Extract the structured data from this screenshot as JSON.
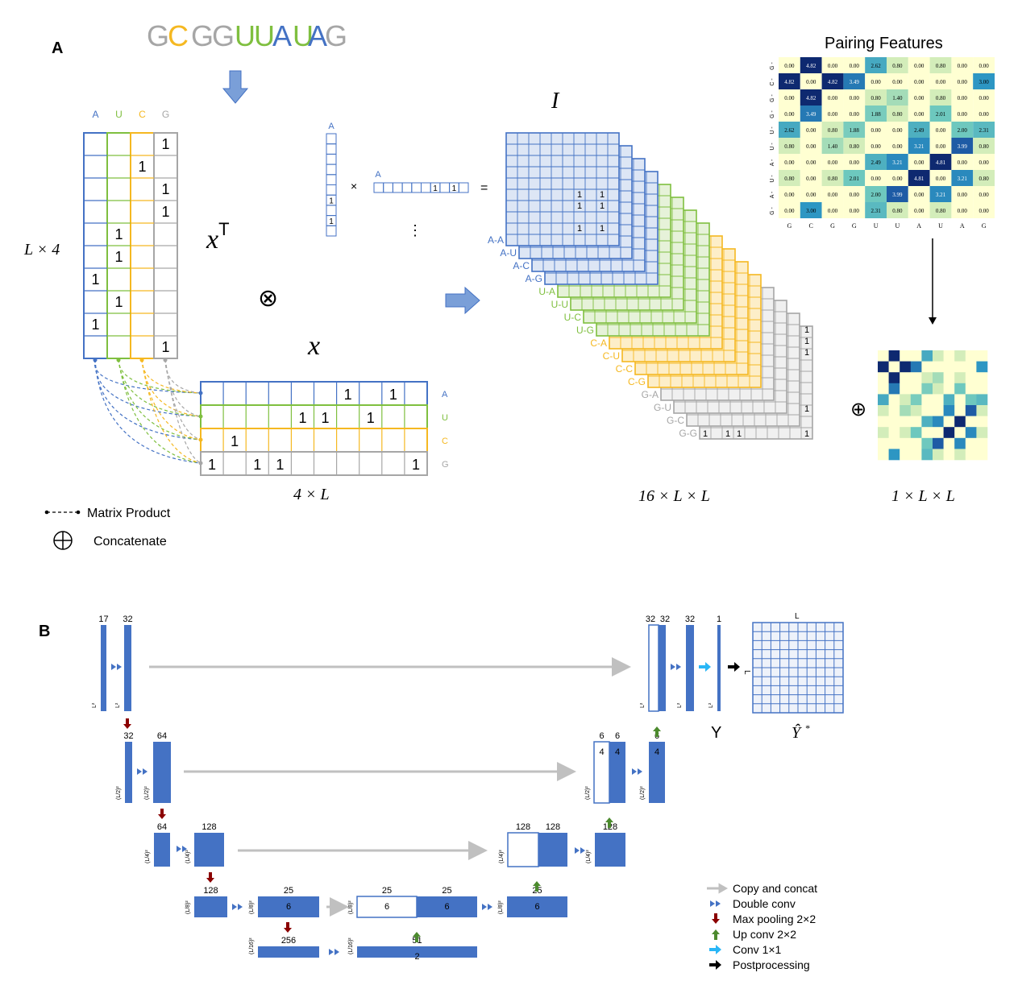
{
  "colors": {
    "A": "#4472c4",
    "U": "#7fbf3f",
    "C": "#f5b821",
    "G": "#a6a6a6",
    "block": "#4472c4",
    "pool": "#8b0000",
    "up": "#4c8a2e",
    "conv1": "#29b6f6",
    "copy": "#c0c0c0"
  },
  "panelA": {
    "label": "A",
    "sequence": [
      "G",
      "C",
      "G",
      "G",
      "U",
      "U",
      "A",
      "U",
      "A",
      "G"
    ],
    "bases": [
      "A",
      "U",
      "C",
      "G"
    ],
    "onehot_cols": [
      [
        6,
        8
      ],
      [
        4,
        5,
        7
      ],
      [
        1
      ],
      [
        0,
        2,
        3,
        9
      ]
    ],
    "xT": "x",
    "xT_sup": "T",
    "x": "x",
    "otimes": "⊗",
    "times": "×",
    "equals": "=",
    "vdots": "⋮",
    "mini_col_ones": [
      4,
      5
    ],
    "mini_row_ones": [
      6,
      8
    ],
    "dim_L4": "L × 4",
    "dim_4L": "4 × L",
    "dim_16LL": "16 × L × L",
    "dim_1LL": "1 × L × L",
    "I_label": "I",
    "pair_labels": [
      "A-A",
      "A-U",
      "A-C",
      "A-G",
      "U-A",
      "U-U",
      "U-C",
      "U-G",
      "C-A",
      "C-U",
      "C-C",
      "C-G",
      "G-A",
      "G-U",
      "G-C",
      "G-G"
    ],
    "one": "1",
    "legend_matrix_product": "Matrix Product",
    "legend_concatenate": "Concatenate",
    "oplus": "⊕",
    "pairing_title": "Pairing Features",
    "pairing_matrix": [
      [
        "0.00",
        "4.82",
        "0.00",
        "0.00",
        "2.62",
        "0.80",
        "0.00",
        "0.80",
        "0.00",
        "0.00"
      ],
      [
        "4.82",
        "0.00",
        "4.82",
        "3.49",
        "0.00",
        "0.00",
        "0.00",
        "0.00",
        "0.00",
        "3.00"
      ],
      [
        "0.00",
        "4.82",
        "0.00",
        "0.00",
        "0.80",
        "1.40",
        "0.00",
        "0.80",
        "0.00",
        "0.00"
      ],
      [
        "0.00",
        "3.49",
        "0.00",
        "0.00",
        "1.88",
        "0.80",
        "0.00",
        "2.01",
        "0.00",
        "0.00"
      ],
      [
        "2.62",
        "0.00",
        "0.80",
        "1.88",
        "0.00",
        "0.00",
        "2.49",
        "0.00",
        "2.00",
        "2.31"
      ],
      [
        "0.80",
        "0.00",
        "1.40",
        "0.80",
        "0.00",
        "0.00",
        "3.21",
        "0.00",
        "3.99",
        "0.80"
      ],
      [
        "0.00",
        "0.00",
        "0.00",
        "0.00",
        "2.49",
        "3.21",
        "0.00",
        "4.81",
        "0.00",
        "0.00"
      ],
      [
        "0.80",
        "0.00",
        "0.80",
        "2.01",
        "0.00",
        "0.00",
        "4.81",
        "0.00",
        "3.21",
        "0.80"
      ],
      [
        "0.00",
        "0.00",
        "0.00",
        "0.00",
        "2.00",
        "3.99",
        "0.00",
        "3.21",
        "0.00",
        "0.00"
      ],
      [
        "0.00",
        "3.00",
        "0.00",
        "0.00",
        "2.31",
        "0.80",
        "0.00",
        "0.80",
        "0.00",
        "0.00"
      ]
    ]
  },
  "panelB": {
    "label": "B",
    "blocks": [
      {
        "num": "17",
        "dim": "L²"
      },
      {
        "num": "32",
        "dim": "L²"
      },
      {
        "num": "32",
        "dim": "(L/2)²"
      },
      {
        "num": "64",
        "dim": "(L/2)²"
      },
      {
        "num": "64",
        "dim": "(L/4)²"
      },
      {
        "num": "128",
        "dim": "(L/4)²"
      },
      {
        "num": "128",
        "dim": "(L/8)²"
      },
      {
        "num": "25",
        "sub": "6",
        "dim": "(L/8)²"
      },
      {
        "num": "256",
        "dim": "(L/16)²"
      },
      {
        "num": "51",
        "sub": "2",
        "dim": "(L/16)²"
      },
      {
        "num": "25",
        "sub": "6",
        "dim": "(L/8)²"
      },
      {
        "num": "25",
        "sub": "6"
      },
      {
        "num": "25",
        "sub": "6",
        "dim": "(L/8)²"
      },
      {
        "num": "128",
        "dim": "(L/4)²"
      },
      {
        "num": "128"
      },
      {
        "num": "128",
        "dim": "(L/4)²"
      },
      {
        "num": "6",
        "sub": "4",
        "dim": "(L/2)²"
      },
      {
        "num": "6",
        "sub": "4"
      },
      {
        "num": "6",
        "sub": "4",
        "dim": "(L/2)²"
      },
      {
        "num": "32",
        "dim": "L²"
      },
      {
        "num": "32"
      },
      {
        "num": "32",
        "dim": "L²"
      },
      {
        "num": "1",
        "dim": "L²"
      }
    ],
    "L_top": "L",
    "L_side": "L",
    "Y": "Y",
    "Yhat": "Ŷ",
    "star": "*",
    "legend": [
      {
        "icon": "copy",
        "label": "Copy and concat"
      },
      {
        "icon": "double",
        "label": "Double conv"
      },
      {
        "icon": "pool",
        "label": "Max pooling 2×2"
      },
      {
        "icon": "up",
        "label": "Up conv 2×2"
      },
      {
        "icon": "conv1",
        "label": "Conv 1×1"
      },
      {
        "icon": "post",
        "label": "Postprocessing"
      }
    ]
  }
}
